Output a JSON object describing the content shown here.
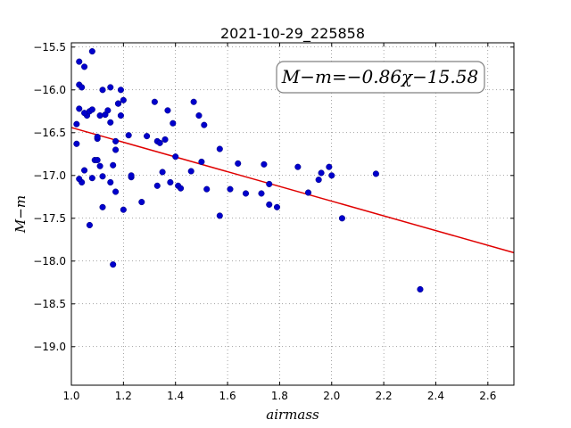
{
  "chart_data": {
    "type": "scatter",
    "title": "2021-10-29_225858",
    "xlabel": "airmass",
    "ylabel": "M−m",
    "xlim": [
      1.0,
      2.7
    ],
    "ylim": [
      -19.45,
      -15.45
    ],
    "x_ticks": [
      1.0,
      1.2,
      1.4,
      1.6,
      1.8,
      2.0,
      2.2,
      2.4,
      2.6
    ],
    "x_tick_labels": [
      "1.0",
      "1.2",
      "1.4",
      "1.6",
      "1.8",
      "2.0",
      "2.2",
      "2.4",
      "2.6"
    ],
    "y_ticks": [
      -15.5,
      -16.0,
      -16.5,
      -17.0,
      -17.5,
      -18.0,
      -18.5,
      -19.0
    ],
    "y_tick_labels": [
      "−15.5",
      "−16.0",
      "−16.5",
      "−17.0",
      "−17.5",
      "−18.0",
      "−18.5",
      "−19.0"
    ],
    "grid": true,
    "annotation": "M−m=−0.86χ−15.58",
    "fit": {
      "slope": -0.86,
      "intercept": -15.58,
      "color": "#e00000"
    },
    "marker_color": "#0000cc",
    "points": [
      [
        1.02,
        -16.63
      ],
      [
        1.02,
        -16.4
      ],
      [
        1.03,
        -16.22
      ],
      [
        1.03,
        -15.67
      ],
      [
        1.03,
        -15.94
      ],
      [
        1.04,
        -15.97
      ],
      [
        1.05,
        -15.73
      ],
      [
        1.06,
        -16.3
      ],
      [
        1.05,
        -16.27
      ],
      [
        1.04,
        -17.08
      ],
      [
        1.03,
        -17.04
      ],
      [
        1.05,
        -16.94
      ],
      [
        1.07,
        -16.25
      ],
      [
        1.07,
        -17.58
      ],
      [
        1.08,
        -15.55
      ],
      [
        1.08,
        -16.23
      ],
      [
        1.08,
        -17.03
      ],
      [
        1.09,
        -16.82
      ],
      [
        1.1,
        -16.82
      ],
      [
        1.1,
        -16.57
      ],
      [
        1.1,
        -16.55
      ],
      [
        1.11,
        -16.3
      ],
      [
        1.11,
        -16.89
      ],
      [
        1.12,
        -16.0
      ],
      [
        1.12,
        -17.01
      ],
      [
        1.12,
        -17.37
      ],
      [
        1.13,
        -16.29
      ],
      [
        1.14,
        -16.24
      ],
      [
        1.15,
        -16.38
      ],
      [
        1.15,
        -15.97
      ],
      [
        1.15,
        -17.08
      ],
      [
        1.16,
        -16.88
      ],
      [
        1.16,
        -18.04
      ],
      [
        1.17,
        -16.7
      ],
      [
        1.17,
        -16.6
      ],
      [
        1.17,
        -17.19
      ],
      [
        1.18,
        -16.16
      ],
      [
        1.18,
        -16.16
      ],
      [
        1.19,
        -16.3
      ],
      [
        1.19,
        -16.0
      ],
      [
        1.2,
        -16.12
      ],
      [
        1.2,
        -17.4
      ],
      [
        1.22,
        -16.53
      ],
      [
        1.23,
        -17.02
      ],
      [
        1.23,
        -17.0
      ],
      [
        1.27,
        -17.31
      ],
      [
        1.29,
        -16.54
      ],
      [
        1.32,
        -16.14
      ],
      [
        1.33,
        -16.6
      ],
      [
        1.33,
        -17.12
      ],
      [
        1.34,
        -16.62
      ],
      [
        1.35,
        -16.96
      ],
      [
        1.36,
        -16.58
      ],
      [
        1.37,
        -16.24
      ],
      [
        1.38,
        -17.08
      ],
      [
        1.39,
        -16.39
      ],
      [
        1.4,
        -16.78
      ],
      [
        1.41,
        -17.12
      ],
      [
        1.42,
        -17.15
      ],
      [
        1.46,
        -16.95
      ],
      [
        1.47,
        -16.14
      ],
      [
        1.49,
        -16.3
      ],
      [
        1.5,
        -16.84
      ],
      [
        1.51,
        -16.41
      ],
      [
        1.52,
        -17.16
      ],
      [
        1.57,
        -16.69
      ],
      [
        1.57,
        -17.47
      ],
      [
        1.61,
        -17.16
      ],
      [
        1.64,
        -16.86
      ],
      [
        1.67,
        -17.21
      ],
      [
        1.73,
        -17.21
      ],
      [
        1.74,
        -16.87
      ],
      [
        1.76,
        -17.1
      ],
      [
        1.76,
        -17.34
      ],
      [
        1.79,
        -17.37
      ],
      [
        1.87,
        -16.9
      ],
      [
        1.91,
        -17.2
      ],
      [
        1.95,
        -17.05
      ],
      [
        1.96,
        -16.97
      ],
      [
        1.99,
        -16.9
      ],
      [
        2.0,
        -17.0
      ],
      [
        2.04,
        -17.5
      ],
      [
        2.17,
        -16.98
      ],
      [
        2.34,
        -18.33
      ]
    ]
  }
}
